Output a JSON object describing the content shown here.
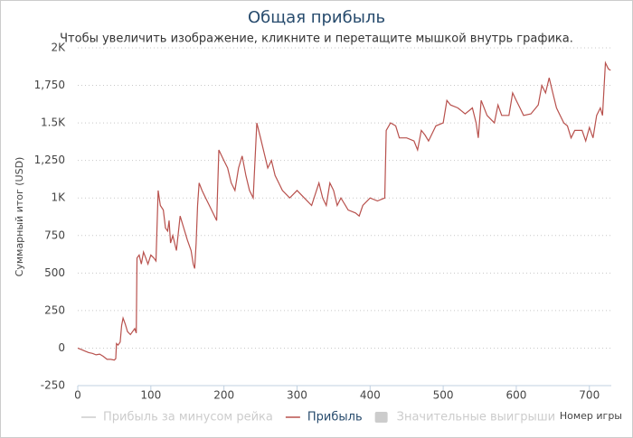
{
  "chart_data": {
    "type": "line",
    "title": "Общая прибыль",
    "subtitle": "Чтобы увеличить изображение, кликните и перетащите мышкой внутрь графика.",
    "y_label": "Суммарный итог (USD)",
    "x_label": "Номер игры",
    "xlim": [
      0,
      730
    ],
    "xticks": [
      0,
      100,
      200,
      300,
      400,
      500,
      600,
      700
    ],
    "ylim": [
      -250,
      2000
    ],
    "yticks": [
      -250,
      0,
      250,
      500,
      750,
      {
        "value": 1000,
        "label": "1K"
      },
      {
        "value": 1250,
        "label": "1,250"
      },
      {
        "value": 1500,
        "label": "1.5K"
      },
      {
        "value": 1750,
        "label": "1,750"
      },
      {
        "value": 2000,
        "label": "2K"
      }
    ],
    "grid": true,
    "legend_items": [
      {
        "name": "Прибыль за минусом рейка",
        "color": "#cccccc",
        "symbol": "line"
      },
      {
        "name": "Прибыль",
        "color": "#b8514d",
        "symbol": "line"
      },
      {
        "name": "Значительные выигрыши",
        "color": "#cccccc",
        "symbol": "rect"
      }
    ],
    "x": [
      0,
      5,
      10,
      15,
      20,
      25,
      30,
      35,
      40,
      45,
      50,
      52,
      53,
      55,
      58,
      60,
      62,
      65,
      68,
      72,
      75,
      78,
      80,
      81,
      84,
      87,
      90,
      93,
      96,
      100,
      104,
      107,
      110,
      113,
      117,
      120,
      123,
      125,
      127,
      130,
      135,
      140,
      145,
      150,
      155,
      158,
      160,
      162,
      164,
      166,
      170,
      175,
      180,
      185,
      190,
      193,
      197,
      200,
      205,
      210,
      215,
      220,
      225,
      230,
      235,
      240,
      245,
      250,
      255,
      260,
      265,
      270,
      275,
      280,
      290,
      300,
      310,
      320,
      330,
      335,
      340,
      345,
      350,
      355,
      360,
      370,
      380,
      385,
      390,
      400,
      410,
      420,
      422,
      428,
      435,
      440,
      450,
      460,
      465,
      470,
      475,
      480,
      490,
      500,
      505,
      510,
      520,
      530,
      540,
      545,
      548,
      552,
      560,
      570,
      575,
      580,
      590,
      595,
      600,
      605,
      610,
      620,
      630,
      635,
      640,
      645,
      650,
      655,
      660,
      665,
      670,
      675,
      680,
      690,
      695,
      700,
      705,
      710,
      715,
      718,
      722,
      726,
      729
    ],
    "series": [
      {
        "name": "Прибыль",
        "color": "#b8514d",
        "values": [
          0,
          -10,
          -20,
          -30,
          -35,
          -45,
          -40,
          -55,
          -75,
          -75,
          -80,
          -70,
          30,
          20,
          40,
          150,
          200,
          160,
          110,
          90,
          110,
          130,
          100,
          600,
          620,
          560,
          640,
          600,
          560,
          620,
          600,
          580,
          1050,
          950,
          920,
          800,
          780,
          850,
          700,
          750,
          650,
          880,
          800,
          720,
          650,
          560,
          530,
          700,
          950,
          1100,
          1050,
          1000,
          950,
          900,
          850,
          1320,
          1280,
          1250,
          1200,
          1100,
          1050,
          1200,
          1280,
          1150,
          1050,
          1000,
          1500,
          1400,
          1300,
          1200,
          1250,
          1150,
          1100,
          1050,
          1000,
          1050,
          1000,
          950,
          1100,
          1000,
          950,
          1100,
          1050,
          950,
          1000,
          920,
          900,
          880,
          950,
          1000,
          980,
          1000,
          1450,
          1500,
          1480,
          1400,
          1400,
          1380,
          1320,
          1450,
          1420,
          1380,
          1480,
          1500,
          1650,
          1620,
          1600,
          1560,
          1600,
          1500,
          1400,
          1650,
          1550,
          1500,
          1620,
          1550,
          1550,
          1700,
          1650,
          1600,
          1550,
          1560,
          1620,
          1750,
          1700,
          1800,
          1700,
          1600,
          1550,
          1500,
          1480,
          1400,
          1450,
          1450,
          1380,
          1470,
          1400,
          1550,
          1600,
          1550,
          1900,
          1860,
          1850
        ]
      }
    ]
  }
}
